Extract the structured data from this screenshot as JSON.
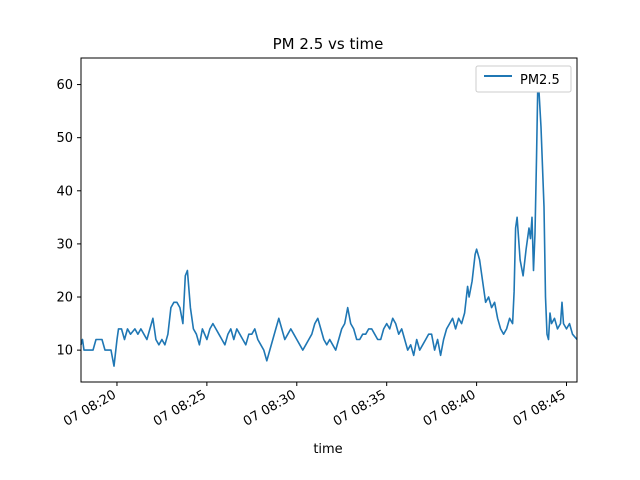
{
  "chart_data": {
    "type": "line",
    "title": "PM 2.5 vs time",
    "xlabel": "time",
    "ylabel": "",
    "legend": {
      "placement": "top-right",
      "entries": [
        "PM2.5"
      ]
    },
    "grid": false,
    "xlim": [
      "07 08:18:00",
      "07 08:45:35"
    ],
    "ylim": [
      4,
      65
    ],
    "x_ticks": [
      {
        "t": "07 08:20:00",
        "label": "07 08:20"
      },
      {
        "t": "07 08:25:00",
        "label": "07 08:25"
      },
      {
        "t": "07 08:30:00",
        "label": "07 08:30"
      },
      {
        "t": "07 08:35:00",
        "label": "07 08:35"
      },
      {
        "t": "07 08:40:00",
        "label": "07 08:40"
      },
      {
        "t": "07 08:45:00",
        "label": "07 08:45"
      }
    ],
    "y_ticks": [
      10,
      20,
      30,
      40,
      50,
      60
    ],
    "series": [
      {
        "name": "PM2.5",
        "color": "#1f77b4",
        "points": [
          [
            "07 08:18:00",
            11
          ],
          [
            "07 08:18:05",
            12
          ],
          [
            "07 08:18:10",
            10
          ],
          [
            "07 08:18:30",
            10
          ],
          [
            "07 08:18:40",
            10
          ],
          [
            "07 08:18:50",
            12
          ],
          [
            "07 08:19:00",
            12
          ],
          [
            "07 08:19:10",
            12
          ],
          [
            "07 08:19:20",
            10
          ],
          [
            "07 08:19:30",
            10
          ],
          [
            "07 08:19:40",
            10
          ],
          [
            "07 08:19:50",
            7
          ],
          [
            "07 08:20:00",
            12
          ],
          [
            "07 08:20:05",
            14
          ],
          [
            "07 08:20:15",
            14
          ],
          [
            "07 08:20:25",
            12
          ],
          [
            "07 08:20:35",
            14
          ],
          [
            "07 08:20:45",
            13
          ],
          [
            "07 08:21:00",
            14
          ],
          [
            "07 08:21:10",
            13
          ],
          [
            "07 08:21:20",
            14
          ],
          [
            "07 08:21:30",
            13
          ],
          [
            "07 08:21:40",
            12
          ],
          [
            "07 08:21:50",
            14
          ],
          [
            "07 08:22:00",
            16
          ],
          [
            "07 08:22:10",
            12
          ],
          [
            "07 08:22:20",
            11
          ],
          [
            "07 08:22:30",
            12
          ],
          [
            "07 08:22:40",
            11
          ],
          [
            "07 08:22:50",
            13
          ],
          [
            "07 08:23:00",
            18
          ],
          [
            "07 08:23:10",
            19
          ],
          [
            "07 08:23:20",
            19
          ],
          [
            "07 08:23:30",
            18
          ],
          [
            "07 08:23:40",
            15
          ],
          [
            "07 08:23:48",
            24
          ],
          [
            "07 08:23:55",
            25
          ],
          [
            "07 08:24:05",
            18
          ],
          [
            "07 08:24:15",
            14
          ],
          [
            "07 08:24:25",
            13
          ],
          [
            "07 08:24:35",
            11
          ],
          [
            "07 08:24:45",
            14
          ],
          [
            "07 08:25:00",
            12
          ],
          [
            "07 08:25:10",
            14
          ],
          [
            "07 08:25:20",
            15
          ],
          [
            "07 08:25:30",
            14
          ],
          [
            "07 08:25:40",
            13
          ],
          [
            "07 08:25:50",
            12
          ],
          [
            "07 08:26:00",
            11
          ],
          [
            "07 08:26:10",
            13
          ],
          [
            "07 08:26:20",
            14
          ],
          [
            "07 08:26:30",
            12
          ],
          [
            "07 08:26:40",
            14
          ],
          [
            "07 08:26:50",
            13
          ],
          [
            "07 08:27:00",
            12
          ],
          [
            "07 08:27:10",
            11
          ],
          [
            "07 08:27:20",
            13
          ],
          [
            "07 08:27:30",
            13
          ],
          [
            "07 08:27:40",
            14
          ],
          [
            "07 08:27:50",
            12
          ],
          [
            "07 08:28:00",
            11
          ],
          [
            "07 08:28:10",
            10
          ],
          [
            "07 08:28:20",
            8
          ],
          [
            "07 08:28:30",
            10
          ],
          [
            "07 08:28:40",
            12
          ],
          [
            "07 08:28:50",
            14
          ],
          [
            "07 08:29:00",
            16
          ],
          [
            "07 08:29:10",
            14
          ],
          [
            "07 08:29:20",
            12
          ],
          [
            "07 08:29:30",
            13
          ],
          [
            "07 08:29:40",
            14
          ],
          [
            "07 08:29:50",
            13
          ],
          [
            "07 08:30:00",
            12
          ],
          [
            "07 08:30:10",
            11
          ],
          [
            "07 08:30:20",
            10
          ],
          [
            "07 08:30:30",
            11
          ],
          [
            "07 08:30:40",
            12
          ],
          [
            "07 08:30:50",
            13
          ],
          [
            "07 08:31:00",
            15
          ],
          [
            "07 08:31:10",
            16
          ],
          [
            "07 08:31:20",
            14
          ],
          [
            "07 08:31:30",
            12
          ],
          [
            "07 08:31:40",
            11
          ],
          [
            "07 08:31:50",
            12
          ],
          [
            "07 08:32:00",
            11
          ],
          [
            "07 08:32:10",
            10
          ],
          [
            "07 08:32:20",
            12
          ],
          [
            "07 08:32:30",
            14
          ],
          [
            "07 08:32:40",
            15
          ],
          [
            "07 08:32:50",
            18
          ],
          [
            "07 08:33:00",
            15
          ],
          [
            "07 08:33:10",
            14
          ],
          [
            "07 08:33:20",
            12
          ],
          [
            "07 08:33:30",
            12
          ],
          [
            "07 08:33:40",
            13
          ],
          [
            "07 08:33:50",
            13
          ],
          [
            "07 08:34:00",
            14
          ],
          [
            "07 08:34:10",
            14
          ],
          [
            "07 08:34:20",
            13
          ],
          [
            "07 08:34:30",
            12
          ],
          [
            "07 08:34:40",
            12
          ],
          [
            "07 08:34:50",
            14
          ],
          [
            "07 08:35:00",
            15
          ],
          [
            "07 08:35:10",
            14
          ],
          [
            "07 08:35:20",
            16
          ],
          [
            "07 08:35:30",
            15
          ],
          [
            "07 08:35:40",
            13
          ],
          [
            "07 08:35:50",
            14
          ],
          [
            "07 08:36:00",
            12
          ],
          [
            "07 08:36:10",
            10
          ],
          [
            "07 08:36:20",
            11
          ],
          [
            "07 08:36:30",
            9
          ],
          [
            "07 08:36:40",
            12
          ],
          [
            "07 08:36:50",
            10
          ],
          [
            "07 08:37:00",
            11
          ],
          [
            "07 08:37:10",
            12
          ],
          [
            "07 08:37:20",
            13
          ],
          [
            "07 08:37:30",
            13
          ],
          [
            "07 08:37:40",
            10
          ],
          [
            "07 08:37:50",
            12
          ],
          [
            "07 08:38:00",
            9
          ],
          [
            "07 08:38:10",
            12
          ],
          [
            "07 08:38:20",
            14
          ],
          [
            "07 08:38:30",
            15
          ],
          [
            "07 08:38:40",
            16
          ],
          [
            "07 08:38:50",
            14
          ],
          [
            "07 08:39:00",
            16
          ],
          [
            "07 08:39:10",
            15
          ],
          [
            "07 08:39:20",
            17
          ],
          [
            "07 08:39:30",
            22
          ],
          [
            "07 08:39:35",
            20
          ],
          [
            "07 08:39:45",
            23
          ],
          [
            "07 08:39:55",
            28
          ],
          [
            "07 08:40:00",
            29
          ],
          [
            "07 08:40:10",
            27
          ],
          [
            "07 08:40:20",
            23
          ],
          [
            "07 08:40:30",
            19
          ],
          [
            "07 08:40:40",
            20
          ],
          [
            "07 08:40:50",
            18
          ],
          [
            "07 08:41:00",
            19
          ],
          [
            "07 08:41:10",
            16
          ],
          [
            "07 08:41:20",
            14
          ],
          [
            "07 08:41:30",
            13
          ],
          [
            "07 08:41:40",
            14
          ],
          [
            "07 08:41:50",
            16
          ],
          [
            "07 08:42:00",
            15
          ],
          [
            "07 08:42:05",
            21
          ],
          [
            "07 08:42:10",
            33
          ],
          [
            "07 08:42:15",
            35
          ],
          [
            "07 08:42:25",
            27
          ],
          [
            "07 08:42:35",
            24
          ],
          [
            "07 08:42:45",
            29
          ],
          [
            "07 08:42:55",
            33
          ],
          [
            "07 08:43:00",
            31
          ],
          [
            "07 08:43:05",
            35
          ],
          [
            "07 08:43:10",
            25
          ],
          [
            "07 08:43:15",
            32
          ],
          [
            "07 08:43:20",
            46
          ],
          [
            "07 08:43:25",
            62
          ],
          [
            "07 08:43:35",
            52
          ],
          [
            "07 08:43:45",
            37
          ],
          [
            "07 08:43:50",
            20
          ],
          [
            "07 08:43:55",
            13
          ],
          [
            "07 08:44:00",
            12
          ],
          [
            "07 08:44:05",
            17
          ],
          [
            "07 08:44:10",
            15
          ],
          [
            "07 08:44:20",
            16
          ],
          [
            "07 08:44:30",
            14
          ],
          [
            "07 08:44:40",
            15
          ],
          [
            "07 08:44:45",
            19
          ],
          [
            "07 08:44:50",
            15
          ],
          [
            "07 08:45:00",
            14
          ],
          [
            "07 08:45:10",
            15
          ],
          [
            "07 08:45:20",
            13
          ],
          [
            "07 08:45:35",
            12
          ]
        ]
      }
    ]
  }
}
